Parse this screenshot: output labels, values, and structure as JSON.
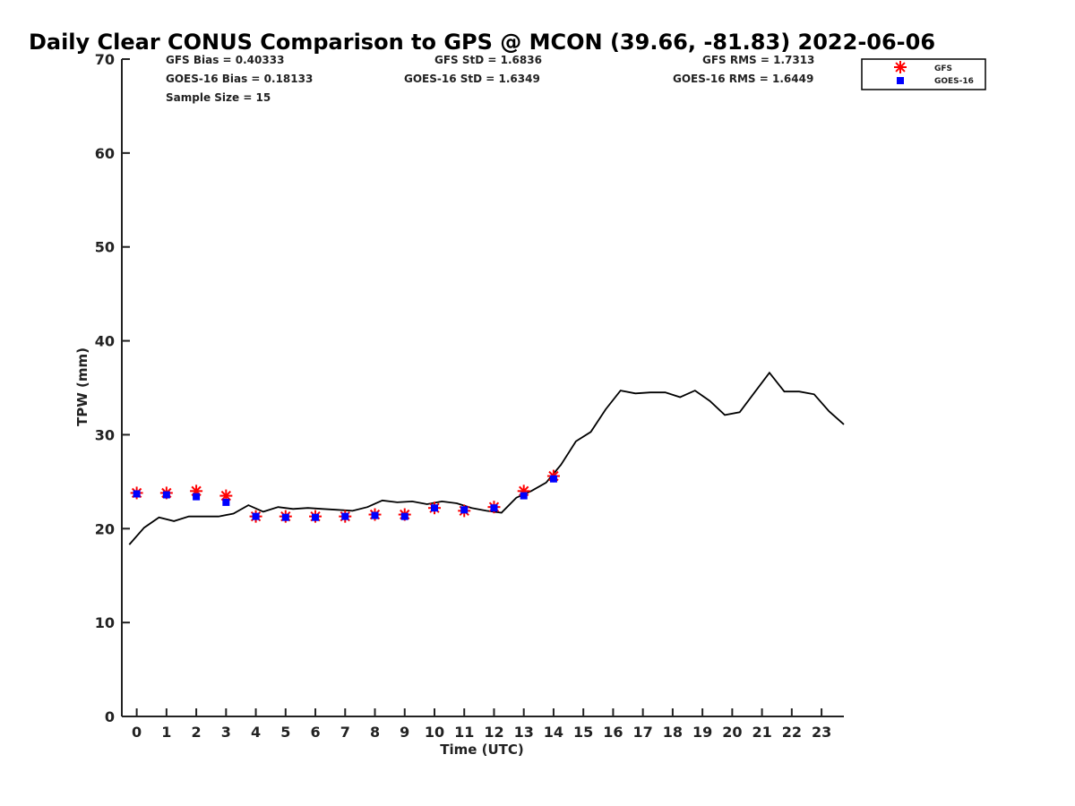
{
  "chart_data": {
    "type": "scatter",
    "title": "Daily Clear CONUS Comparison to GPS @ MCON (39.66, -81.83) 2022-06-06",
    "xlabel": "Time (UTC)",
    "ylabel": "TPW (mm)",
    "xlim": [
      -0.5,
      23.75
    ],
    "ylim": [
      0,
      70
    ],
    "xticks": [
      0,
      1,
      2,
      3,
      4,
      5,
      6,
      7,
      8,
      9,
      10,
      11,
      12,
      13,
      14,
      15,
      16,
      17,
      18,
      19,
      20,
      21,
      22,
      23
    ],
    "yticks": [
      0,
      10,
      20,
      30,
      40,
      50,
      60,
      70
    ],
    "grid": false,
    "legend_position": "top-right",
    "stats": {
      "gfs_bias": "GFS Bias = 0.40333",
      "goes_bias": "GOES-16 Bias = 0.18133",
      "sample_size": "Sample Size = 15",
      "gfs_std": "GFS StD = 1.6836",
      "goes_std": "GOES-16 StD = 1.6349",
      "gfs_rms": "GFS RMS = 1.7313",
      "goes_rms": "GOES-16 RMS = 1.6449"
    },
    "series": [
      {
        "name": "GFS",
        "marker": "asterisk",
        "color": "#ff0000",
        "x": [
          0,
          1,
          2,
          3,
          4,
          5,
          6,
          7,
          8,
          9,
          10,
          11,
          12,
          13,
          14
        ],
        "y": [
          23.8,
          23.8,
          24.0,
          23.5,
          21.3,
          21.3,
          21.3,
          21.3,
          21.5,
          21.5,
          22.2,
          21.9,
          22.3,
          24.0,
          25.6
        ]
      },
      {
        "name": "GOES-16",
        "marker": "square",
        "color": "#0000ff",
        "x": [
          0,
          1,
          2,
          3,
          4,
          5,
          6,
          7,
          8,
          9,
          10,
          11,
          12,
          13,
          14
        ],
        "y": [
          23.7,
          23.6,
          23.4,
          22.8,
          21.3,
          21.2,
          21.2,
          21.3,
          21.4,
          21.3,
          22.2,
          22.0,
          22.2,
          23.5,
          25.3
        ]
      },
      {
        "marker": "line",
        "color": "#000000",
        "x": [
          -0.25,
          0.25,
          0.75,
          1.25,
          1.75,
          2.25,
          2.75,
          3.25,
          3.75,
          4.25,
          4.75,
          5.25,
          5.75,
          6.25,
          6.75,
          7.25,
          7.75,
          8.25,
          8.75,
          9.25,
          9.75,
          10.25,
          10.75,
          11.25,
          11.75,
          12.25,
          12.75,
          13.25,
          13.75,
          14.25,
          14.75,
          15.25,
          15.75,
          16.25,
          16.75,
          17.25,
          17.75,
          18.25,
          18.75,
          19.25,
          19.75,
          20.25,
          20.75,
          21.25,
          21.75,
          22.25,
          22.75,
          23.25,
          23.75
        ],
        "y": [
          18.3,
          20.1,
          21.2,
          20.8,
          21.3,
          21.3,
          21.3,
          21.6,
          22.5,
          21.8,
          22.3,
          22.1,
          22.2,
          22.1,
          22.0,
          21.9,
          22.3,
          23.0,
          22.8,
          22.9,
          22.6,
          22.9,
          22.7,
          22.2,
          21.9,
          21.7,
          23.3,
          24.0,
          24.9,
          26.8,
          29.3,
          30.3,
          32.7,
          34.7,
          34.4,
          34.5,
          34.5,
          34.0,
          34.7,
          33.6,
          32.1,
          32.4,
          34.5,
          36.6,
          34.6,
          34.6,
          34.3,
          32.5,
          31.1
        ]
      }
    ]
  }
}
